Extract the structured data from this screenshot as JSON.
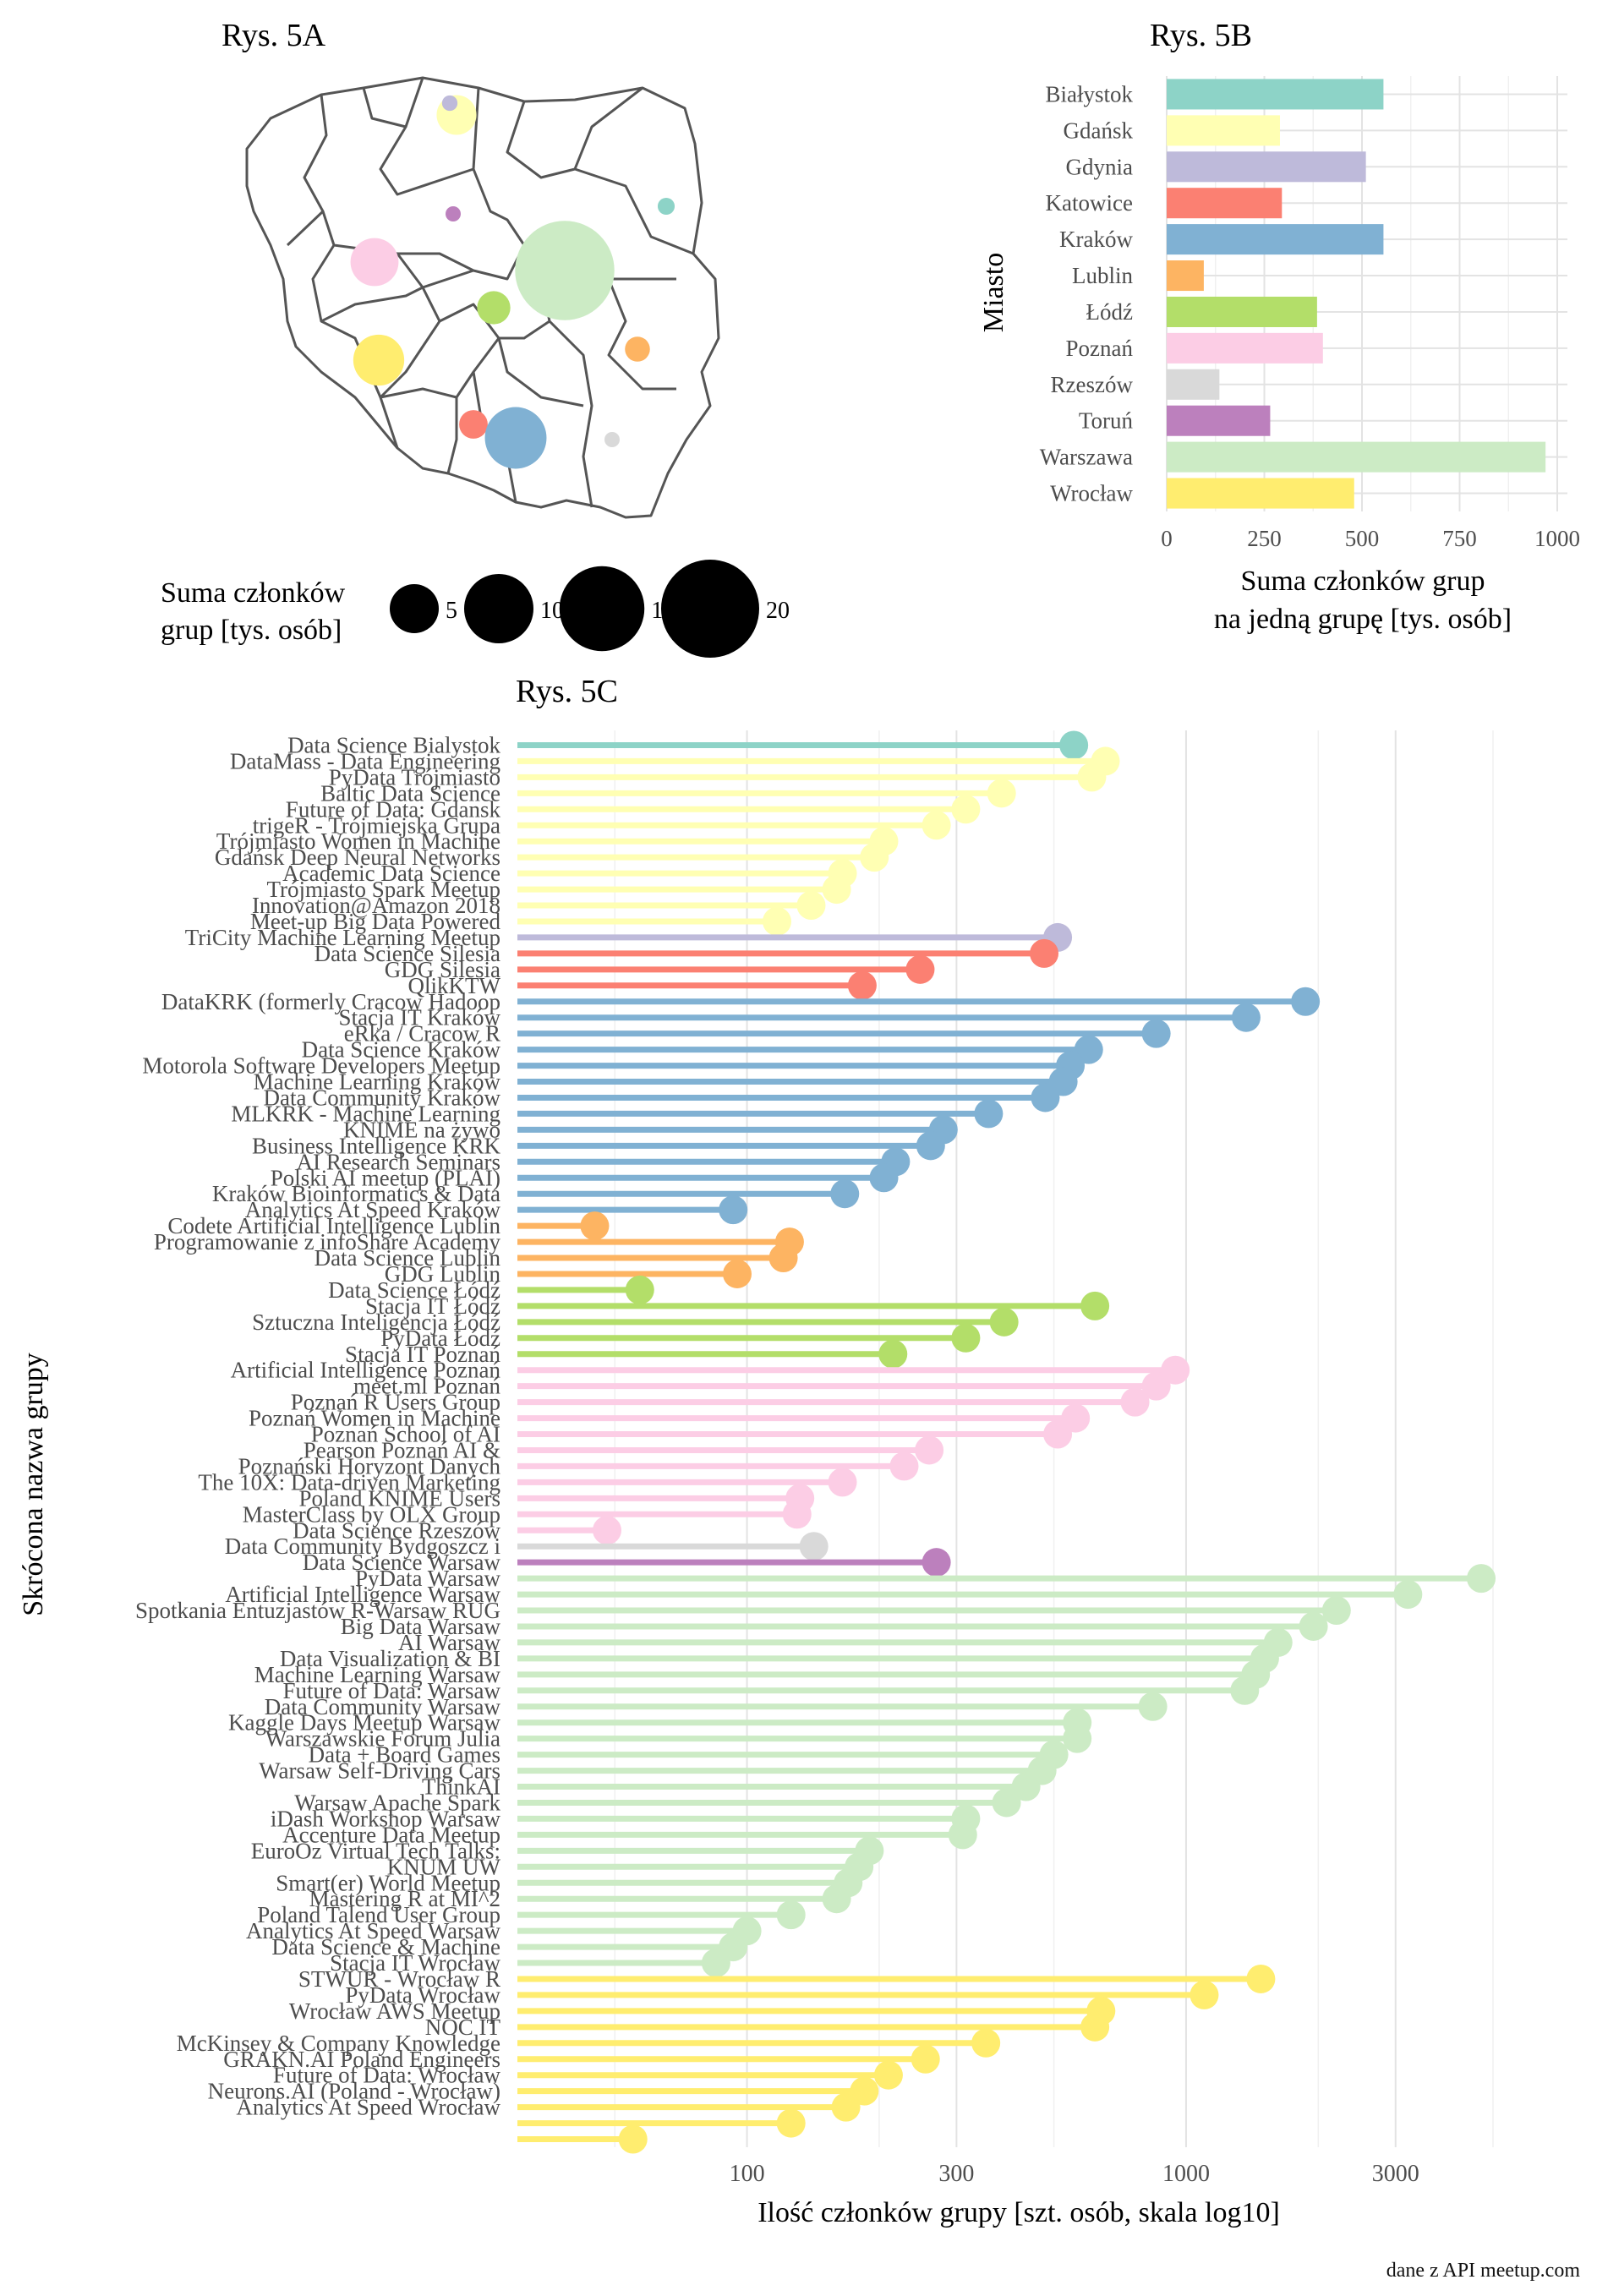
{
  "titles": {
    "a": "Rys. 5A",
    "b": "Rys. 5B",
    "c": "Rys. 5C"
  },
  "legend_5a": {
    "title_line1": "Suma członków",
    "title_line2": "grup [tys. osób]",
    "sizes": [
      5,
      10,
      15,
      20
    ],
    "size_labels": [
      "5",
      "10",
      "15",
      "20"
    ]
  },
  "credit": "dane z API meetup.com",
  "city_colors": {
    "Białystok": "#8DD3C7",
    "Gdańsk": "#FFFFB3",
    "Gdynia": "#BEBADA",
    "Katowice": "#FB8072",
    "Kraków": "#80B1D3",
    "Lublin": "#FDB462",
    "Łódź": "#B3DE69",
    "Poznań": "#FCCDE5",
    "Rzeszów": "#D9D9D9",
    "Toruń": "#BC80BD",
    "Warszawa": "#CCEBC5",
    "Wrocław": "#FFED6F"
  },
  "map_5a": {
    "bubbles": [
      {
        "city": "Gdynia",
        "value": 0.5
      },
      {
        "city": "Gdańsk",
        "value": 3.3
      },
      {
        "city": "Białystok",
        "value": 0.6
      },
      {
        "city": "Toruń",
        "value": 0.3
      },
      {
        "city": "Poznań",
        "value": 4.8
      },
      {
        "city": "Warszawa",
        "value": 20.5
      },
      {
        "city": "Łódź",
        "value": 2.3
      },
      {
        "city": "Lublin",
        "value": 1.3
      },
      {
        "city": "Wrocław",
        "value": 5.4
      },
      {
        "city": "Katowice",
        "value": 1.7
      },
      {
        "city": "Kraków",
        "value": 7.9
      },
      {
        "city": "Rzeszów",
        "value": 0.15
      }
    ]
  },
  "chart_data": [
    {
      "type": "bar",
      "title": "Rys. 5B",
      "xlabel_line1": "Suma członków grup",
      "xlabel_line2": "na jedną grupę [tys. osób]",
      "ylabel": "Miasto",
      "orientation": "horizontal",
      "xlim": [
        0,
        1000
      ],
      "x_ticks": [
        0,
        250,
        500,
        750,
        1000
      ],
      "x_tick_labels": [
        "0",
        "250",
        "500",
        "750",
        "1000"
      ],
      "grid": true,
      "categories": [
        "Białystok",
        "Gdańsk",
        "Gdynia",
        "Katowice",
        "Kraków",
        "Lublin",
        "Łódź",
        "Poznań",
        "Rzeszów",
        "Toruń",
        "Warszawa",
        "Wrocław"
      ],
      "values": [
        555,
        290,
        510,
        295,
        555,
        95,
        385,
        400,
        135,
        265,
        970,
        480
      ]
    },
    {
      "type": "scatter",
      "subtype": "lollipop",
      "title": "Rys. 5C",
      "xlabel": "Ilość członków grupy [szt. osób, skala log10]",
      "ylabel": "Skrócona nazwa grupy",
      "x_scale": "log10",
      "xlim": [
        30,
        8000
      ],
      "x_ticks": [
        100,
        300,
        1000,
        3000
      ],
      "x_tick_labels": [
        "100",
        "300",
        "1000",
        "3000"
      ],
      "grid": true,
      "groups": [
        {
          "name": "Data Science Bialystok",
          "city": "Białystok",
          "value": 555
        },
        {
          "name": "DataMass - Data Engineering",
          "city": "Gdańsk",
          "value": 655
        },
        {
          "name": "PyData Trójmiasto",
          "city": "Gdańsk",
          "value": 610
        },
        {
          "name": "Baltic Data Science",
          "city": "Gdańsk",
          "value": 380
        },
        {
          "name": "Future of Data: Gdansk",
          "city": "Gdańsk",
          "value": 315
        },
        {
          "name": "trigeR - Trójmiejska Grupa",
          "city": "Gdańsk",
          "value": 270
        },
        {
          "name": "Trójmiasto Women in Machine",
          "city": "Gdańsk",
          "value": 205
        },
        {
          "name": "Gdańsk Deep Neural Networks",
          "city": "Gdańsk",
          "value": 195
        },
        {
          "name": "Academic Data Science",
          "city": "Gdańsk",
          "value": 165
        },
        {
          "name": "Trójmiasto Spark Meetup",
          "city": "Gdańsk",
          "value": 160
        },
        {
          "name": "Innovation@Amazon 2018",
          "city": "Gdańsk",
          "value": 140
        },
        {
          "name": "Meet-up Big Data Powered",
          "city": "Gdańsk",
          "value": 117
        },
        {
          "name": "TriCity Machine Learning Meetup",
          "city": "Gdynia",
          "value": 510
        },
        {
          "name": "Data Science Silesia",
          "city": "Katowice",
          "value": 475
        },
        {
          "name": "GDG Silesia",
          "city": "Katowice",
          "value": 248
        },
        {
          "name": "QlikKTW",
          "city": "Katowice",
          "value": 183
        },
        {
          "name": "DataKRK (formerly Cracow Hadoop",
          "city": "Kraków",
          "value": 1870
        },
        {
          "name": "Stacja IT Kraków",
          "city": "Kraków",
          "value": 1370
        },
        {
          "name": "eRka / Cracow R",
          "city": "Kraków",
          "value": 855
        },
        {
          "name": "Data Science Kraków",
          "city": "Kraków",
          "value": 600
        },
        {
          "name": "Motorola Software Developers Meetup",
          "city": "Kraków",
          "value": 545
        },
        {
          "name": "Machine Learning Kraków",
          "city": "Kraków",
          "value": 525
        },
        {
          "name": "Data Community Kraków",
          "city": "Kraków",
          "value": 478
        },
        {
          "name": "MLKRK - Machine Learning",
          "city": "Kraków",
          "value": 355
        },
        {
          "name": "KNIME na żywo",
          "city": "Kraków",
          "value": 280
        },
        {
          "name": "Business Intelligence KRK",
          "city": "Kraków",
          "value": 262
        },
        {
          "name": "AI Research Seminars",
          "city": "Kraków",
          "value": 218
        },
        {
          "name": "Polski AI meetup (PLAI)",
          "city": "Kraków",
          "value": 205
        },
        {
          "name": "Kraków Bioinformatics & Data",
          "city": "Kraków",
          "value": 167
        },
        {
          "name": "Analytics At Speed Kraków",
          "city": "Kraków",
          "value": 93
        },
        {
          "name": "Codete Artificial Intelligence Lublin",
          "city": "Lublin",
          "value": 45
        },
        {
          "name": "Programowanie z infoShare Academy",
          "city": "Lublin",
          "value": 125
        },
        {
          "name": "Data Science Lublin",
          "city": "Lublin",
          "value": 121
        },
        {
          "name": "GDG Lublin",
          "city": "Lublin",
          "value": 95
        },
        {
          "name": "Data Science Łódź",
          "city": "Łódź",
          "value": 57
        },
        {
          "name": "Stacja IT Łódź",
          "city": "Łódź",
          "value": 620
        },
        {
          "name": "Sztuczna Inteligencja Łódź",
          "city": "Łódź",
          "value": 385
        },
        {
          "name": "PyData Łódź",
          "city": "Łódź",
          "value": 315
        },
        {
          "name": "Stacja IT Poznań",
          "city": "Łódź",
          "value": 215
        },
        {
          "name": "Artificial Intelligence Poznań",
          "city": "Poznań",
          "value": 945
        },
        {
          "name": "meet.ml Poznań",
          "city": "Poznań",
          "value": 855
        },
        {
          "name": "Poznań R Users Group",
          "city": "Poznań",
          "value": 765
        },
        {
          "name": "Poznań Women in Machine",
          "city": "Poznań",
          "value": 560
        },
        {
          "name": "Poznań School of AI",
          "city": "Poznań",
          "value": 510
        },
        {
          "name": "Pearson Poznań AI &",
          "city": "Poznań",
          "value": 260
        },
        {
          "name": "Poznański Horyzont Danych",
          "city": "Poznań",
          "value": 228
        },
        {
          "name": "The 10X: Data-driven Marketing",
          "city": "Poznań",
          "value": 165
        },
        {
          "name": "Poland KNIME Users",
          "city": "Poznań",
          "value": 132
        },
        {
          "name": "MasterClass by OLX Group",
          "city": "Poznań",
          "value": 130
        },
        {
          "name": "Data Science Rzeszów",
          "city": "Poznań",
          "value": 48
        },
        {
          "name": "Data Community Bydgoszcz i",
          "city": "Rzeszów",
          "value": 142
        },
        {
          "name": "Data Science Warsaw",
          "city": "Toruń",
          "value": 270
        },
        {
          "name": "PyData Warsaw",
          "city": "Warszawa",
          "value": 4700
        },
        {
          "name": "Artificial Intelligence Warsaw",
          "city": "Warszawa",
          "value": 3200
        },
        {
          "name": "Spotkania Entuzjastów R-Warsaw RUG",
          "city": "Warszawa",
          "value": 2200
        },
        {
          "name": "Big Data Warsaw",
          "city": "Warszawa",
          "value": 1950
        },
        {
          "name": "AI Warsaw",
          "city": "Warszawa",
          "value": 1620
        },
        {
          "name": "Data Visualization & BI",
          "city": "Warszawa",
          "value": 1510
        },
        {
          "name": "Machine Learning Warsaw",
          "city": "Warszawa",
          "value": 1440
        },
        {
          "name": "Future of Data: Warsaw",
          "city": "Warszawa",
          "value": 1360
        },
        {
          "name": "Data Community Warsaw",
          "city": "Warszawa",
          "value": 840
        },
        {
          "name": "Kaggle Days Meetup Warsaw",
          "city": "Warszawa",
          "value": 565
        },
        {
          "name": "Warszawskie Forum Julia",
          "city": "Warszawa",
          "value": 565
        },
        {
          "name": "Data + Board Games",
          "city": "Warszawa",
          "value": 500
        },
        {
          "name": "Warsaw Self-Driving Cars",
          "city": "Warszawa",
          "value": 470
        },
        {
          "name": "ThinkAI",
          "city": "Warszawa",
          "value": 432
        },
        {
          "name": "Warsaw Apache Spark",
          "city": "Warszawa",
          "value": 390
        },
        {
          "name": "iDash Workshop Warsaw",
          "city": "Warszawa",
          "value": 315
        },
        {
          "name": "Accenture Data Meetup",
          "city": "Warszawa",
          "value": 310
        },
        {
          "name": "EuroOz Virtual Tech Talks:",
          "city": "Warszawa",
          "value": 190
        },
        {
          "name": "KNUM UW",
          "city": "Warszawa",
          "value": 180
        },
        {
          "name": "Smart(er) World Meetup",
          "city": "Warszawa",
          "value": 170
        },
        {
          "name": "Mastering R at MI^2",
          "city": "Warszawa",
          "value": 160
        },
        {
          "name": "Poland Talend User Group",
          "city": "Warszawa",
          "value": 126
        },
        {
          "name": "Analytics At Speed Warsaw",
          "city": "Warszawa",
          "value": 100
        },
        {
          "name": "Data Science & Machine",
          "city": "Warszawa",
          "value": 93
        },
        {
          "name": "Stacja IT Wrocław",
          "city": "Warszawa",
          "value": 85
        },
        {
          "name": "STWUR - Wrocław R",
          "city": "Wrocław",
          "value": 1480
        },
        {
          "name": "PyData Wrocław",
          "city": "Wrocław",
          "value": 1100
        },
        {
          "name": "Wrocław AWS Meetup",
          "city": "Wrocław",
          "value": 640
        },
        {
          "name": "NOC IT",
          "city": "Wrocław",
          "value": 620
        },
        {
          "name": "McKinsey & Company Knowledge",
          "city": "Wrocław",
          "value": 350
        },
        {
          "name": "GRAKN.AI Poland Engineers",
          "city": "Wrocław",
          "value": 255
        },
        {
          "name": "Future of Data: Wrocław",
          "city": "Wrocław",
          "value": 210
        },
        {
          "name": "Neurons.AI (Poland - Wrocław)",
          "city": "Wrocław",
          "value": 185
        },
        {
          "name": "Analytics At Speed Wrocław",
          "city": "Wrocław",
          "value": 168
        },
        {
          "name": "",
          "city": "Wrocław",
          "value": 126
        },
        {
          "name": "",
          "city": "Wrocław",
          "value": 55
        }
      ]
    }
  ]
}
